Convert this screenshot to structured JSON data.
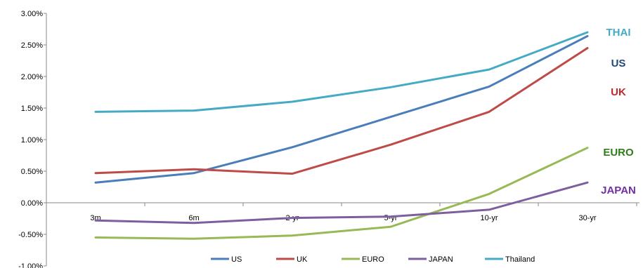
{
  "chart_data": {
    "type": "line",
    "categories": [
      "3m",
      "6m",
      "2-yr",
      "5-yr",
      "10-yr",
      "30-yr"
    ],
    "ylim": [
      -1.0,
      3.0
    ],
    "y_ticks": [
      "-1.00%",
      "-0.50%",
      "0.00%",
      "0.50%",
      "1.00%",
      "1.50%",
      "2.00%",
      "2.50%",
      "3.00%"
    ],
    "y_tick_values": [
      -1.0,
      -0.5,
      0.0,
      0.5,
      1.0,
      1.5,
      2.0,
      2.5,
      3.0
    ],
    "grid": false,
    "legend_position": "bottom",
    "series": [
      {
        "name": "US",
        "color": "#4a7ebb",
        "values": [
          0.32,
          0.47,
          0.88,
          1.36,
          1.84,
          2.64
        ]
      },
      {
        "name": "UK",
        "color": "#be4b48",
        "values": [
          0.47,
          0.53,
          0.46,
          0.92,
          1.44,
          2.45
        ]
      },
      {
        "name": "EURO",
        "color": "#98b954",
        "values": [
          -0.55,
          -0.57,
          -0.52,
          -0.38,
          0.14,
          0.87
        ]
      },
      {
        "name": "JAPAN",
        "color": "#7d5fa0",
        "values": [
          -0.28,
          -0.32,
          -0.24,
          -0.22,
          -0.11,
          0.32
        ]
      },
      {
        "name": "Thailand",
        "color": "#46aac5",
        "values": [
          1.44,
          1.46,
          1.6,
          1.83,
          2.11,
          2.7
        ]
      }
    ],
    "end_labels": [
      {
        "text": "THAI",
        "color": "#46aac5",
        "series": "Thailand"
      },
      {
        "text": "US",
        "color": "#1f497d",
        "series": "US"
      },
      {
        "text": "UK",
        "color": "#c0282c",
        "series": "UK"
      },
      {
        "text": "EURO",
        "color": "#2e7d1a",
        "series": "EURO"
      },
      {
        "text": "JAPAN",
        "color": "#7030a0",
        "series": "JAPAN"
      }
    ]
  }
}
